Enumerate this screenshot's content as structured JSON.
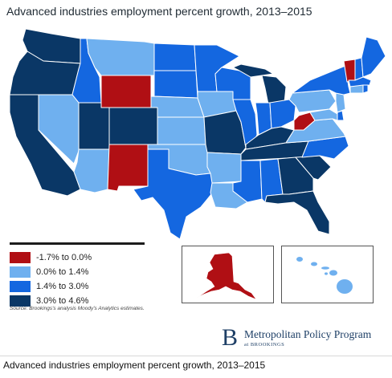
{
  "title": "Advanced industries employment percent growth, 2013–2015",
  "legend": {
    "items": [
      {
        "label": "-1.7% to 0.0%",
        "color": "#b00f14"
      },
      {
        "label": "0.0% to 1.4%",
        "color": "#6fb0ef"
      },
      {
        "label": "1.4% to 3.0%",
        "color": "#1467e0"
      },
      {
        "label": "3.0% to 4.6%",
        "color": "#0a3766"
      }
    ],
    "source": "Source: Brookings's analysis Moody's Analytics estimates."
  },
  "map": {
    "category_colors": {
      "neg": "#b00f14",
      "low": "#6fb0ef",
      "mid": "#1467e0",
      "high": "#0a3766"
    },
    "insets": [
      "alaska",
      "hawaii"
    ]
  },
  "branding": {
    "logo_letter": "B",
    "name": "Metropolitan Policy Program",
    "sub": "at BROOKINGS"
  },
  "caption": "Advanced industries employment percent growth, 2013–2015"
}
